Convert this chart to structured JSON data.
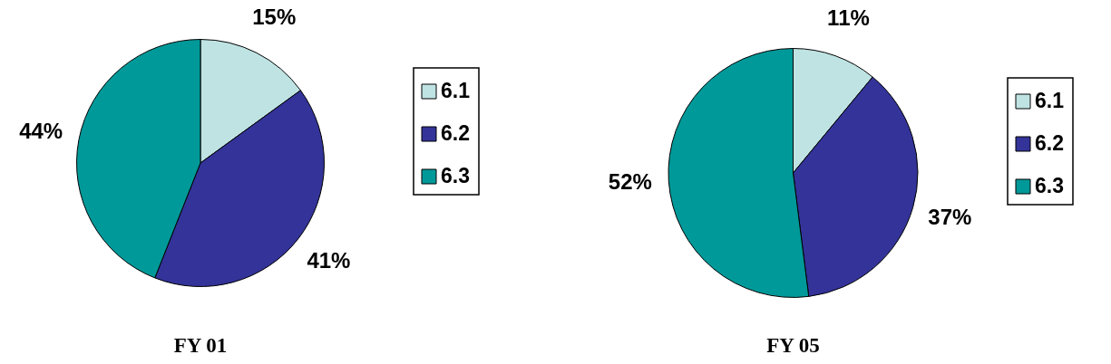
{
  "chart_data": [
    {
      "type": "pie",
      "title": "FY 01",
      "categories": [
        "6.1",
        "6.2",
        "6.3"
      ],
      "values": [
        15,
        41,
        44
      ],
      "value_labels": [
        "15%",
        "41%",
        "44%"
      ],
      "colors": [
        "#bfe3e3",
        "#333399",
        "#009999"
      ],
      "legend": "right"
    },
    {
      "type": "pie",
      "title": "FY 05",
      "categories": [
        "6.1",
        "6.2",
        "6.3"
      ],
      "values": [
        11,
        37,
        52
      ],
      "value_labels": [
        "11%",
        "37%",
        "52%"
      ],
      "colors": [
        "#bfe3e3",
        "#333399",
        "#009999"
      ],
      "legend": "right"
    }
  ]
}
